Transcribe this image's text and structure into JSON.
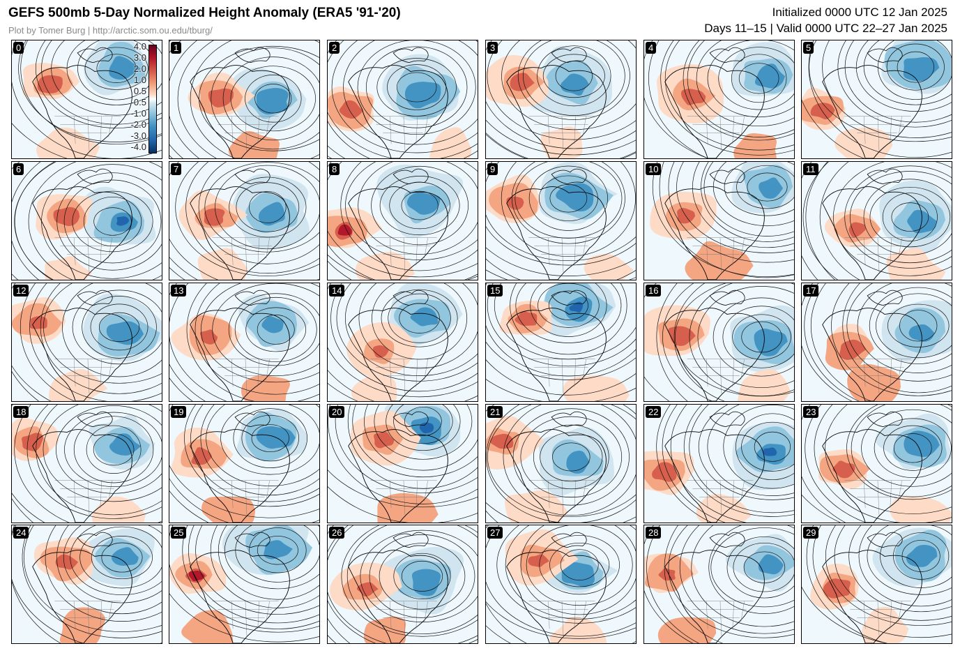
{
  "header": {
    "title": "GEFS 500mb 5-Day Normalized Height Anomaly (ERA5 '91-'20)",
    "credit": "Plot by Tomer Burg | http://arctic.som.ou.edu/tburg/",
    "initialized": "Initialized 0000 UTC 12 Jan 2025",
    "valid": "Days 11–15 | Valid 0000 UTC 22–27 Jan 2025"
  },
  "colorbar": {
    "ticks": [
      "4.0",
      "3.0",
      "2.0",
      "1.0",
      "0.5",
      "-0.5",
      "-1.0",
      "-2.0",
      "-3.0",
      "-4.0"
    ],
    "colors": {
      "pos_strong": "#b2182b",
      "pos_mid": "#d6604d",
      "pos_weak": "#f4a582",
      "pos_faint": "#fddbc7",
      "neg_faint": "#d1e5f0",
      "neg_weak": "#92c5de",
      "neg_mid": "#4393c3",
      "neg_strong": "#2166ac"
    }
  },
  "members": [
    {
      "label": "0"
    },
    {
      "label": "1"
    },
    {
      "label": "2"
    },
    {
      "label": "3"
    },
    {
      "label": "4"
    },
    {
      "label": "5"
    },
    {
      "label": "6"
    },
    {
      "label": "7"
    },
    {
      "label": "8"
    },
    {
      "label": "9"
    },
    {
      "label": "10"
    },
    {
      "label": "11"
    },
    {
      "label": "12"
    },
    {
      "label": "13"
    },
    {
      "label": "14"
    },
    {
      "label": "15"
    },
    {
      "label": "16"
    },
    {
      "label": "17"
    },
    {
      "label": "18"
    },
    {
      "label": "19"
    },
    {
      "label": "20"
    },
    {
      "label": "21"
    },
    {
      "label": "22"
    },
    {
      "label": "23"
    },
    {
      "label": "24"
    },
    {
      "label": "25"
    },
    {
      "label": "26"
    },
    {
      "label": "27"
    },
    {
      "label": "28"
    },
    {
      "label": "29"
    }
  ]
}
